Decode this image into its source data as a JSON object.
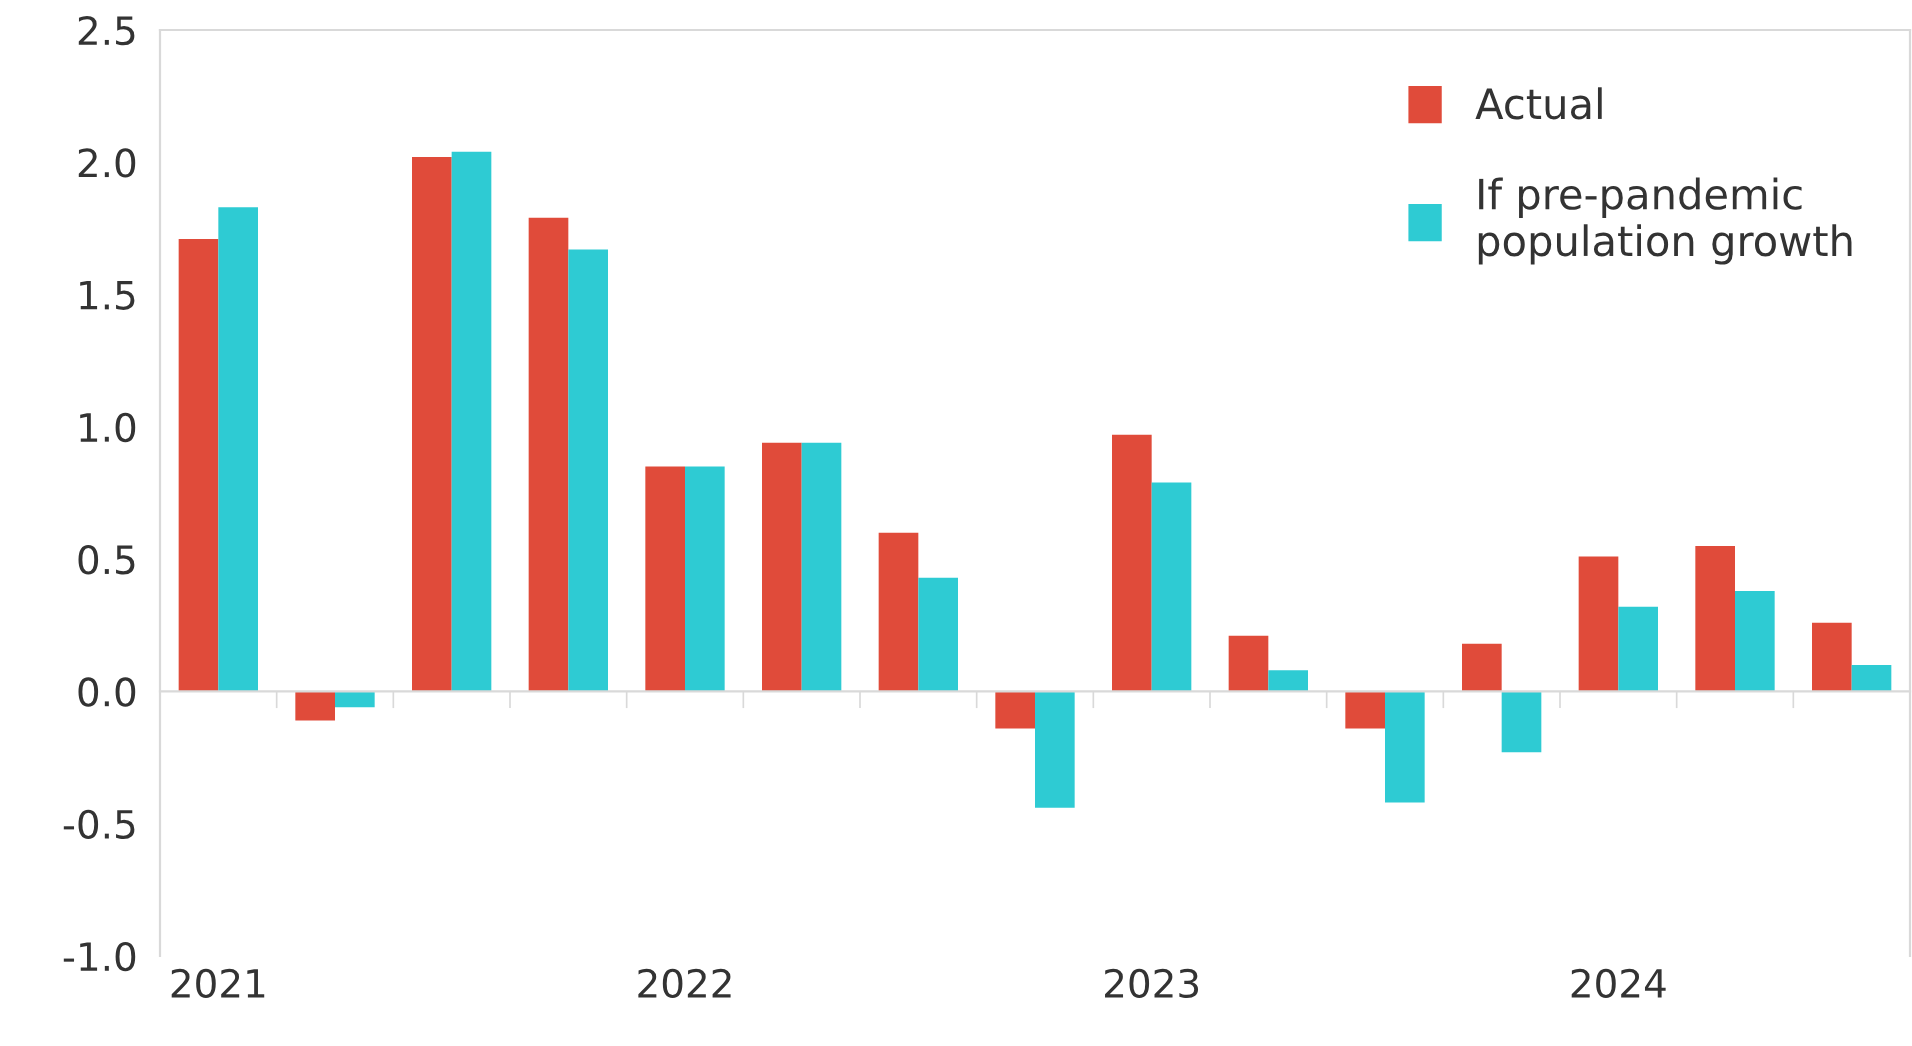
{
  "chart_data": {
    "type": "bar",
    "categories": [
      "2021",
      null,
      null,
      null,
      "2022",
      null,
      null,
      null,
      "2023",
      null,
      null,
      null,
      "2024",
      null,
      null
    ],
    "series": [
      {
        "name": "Actual",
        "color": "#e04b3a",
        "values": [
          1.71,
          -0.11,
          2.02,
          1.79,
          0.85,
          0.94,
          0.6,
          -0.14,
          0.97,
          0.21,
          -0.14,
          0.18,
          0.51,
          0.55,
          0.26
        ]
      },
      {
        "name": "If pre-pandemic\npopulation growth",
        "color": "#2ecbd3",
        "values": [
          1.83,
          -0.06,
          2.04,
          1.67,
          0.85,
          0.94,
          0.43,
          -0.44,
          0.79,
          0.08,
          -0.42,
          -0.23,
          0.32,
          0.38,
          0.1
        ]
      }
    ],
    "ylim": [
      -1.0,
      2.5
    ],
    "yticks": [
      {
        "value": -1.0,
        "label": "-1.0"
      },
      {
        "value": -0.5,
        "label": "-0.5"
      },
      {
        "value": 0.0,
        "label": "0.0"
      },
      {
        "value": 0.5,
        "label": "0.5"
      },
      {
        "value": 1.0,
        "label": "1.0"
      },
      {
        "value": 1.5,
        "label": "1.5"
      },
      {
        "value": 2.0,
        "label": "2.0"
      },
      {
        "value": 2.5,
        "label": "2.5"
      }
    ],
    "legend": "top right"
  }
}
